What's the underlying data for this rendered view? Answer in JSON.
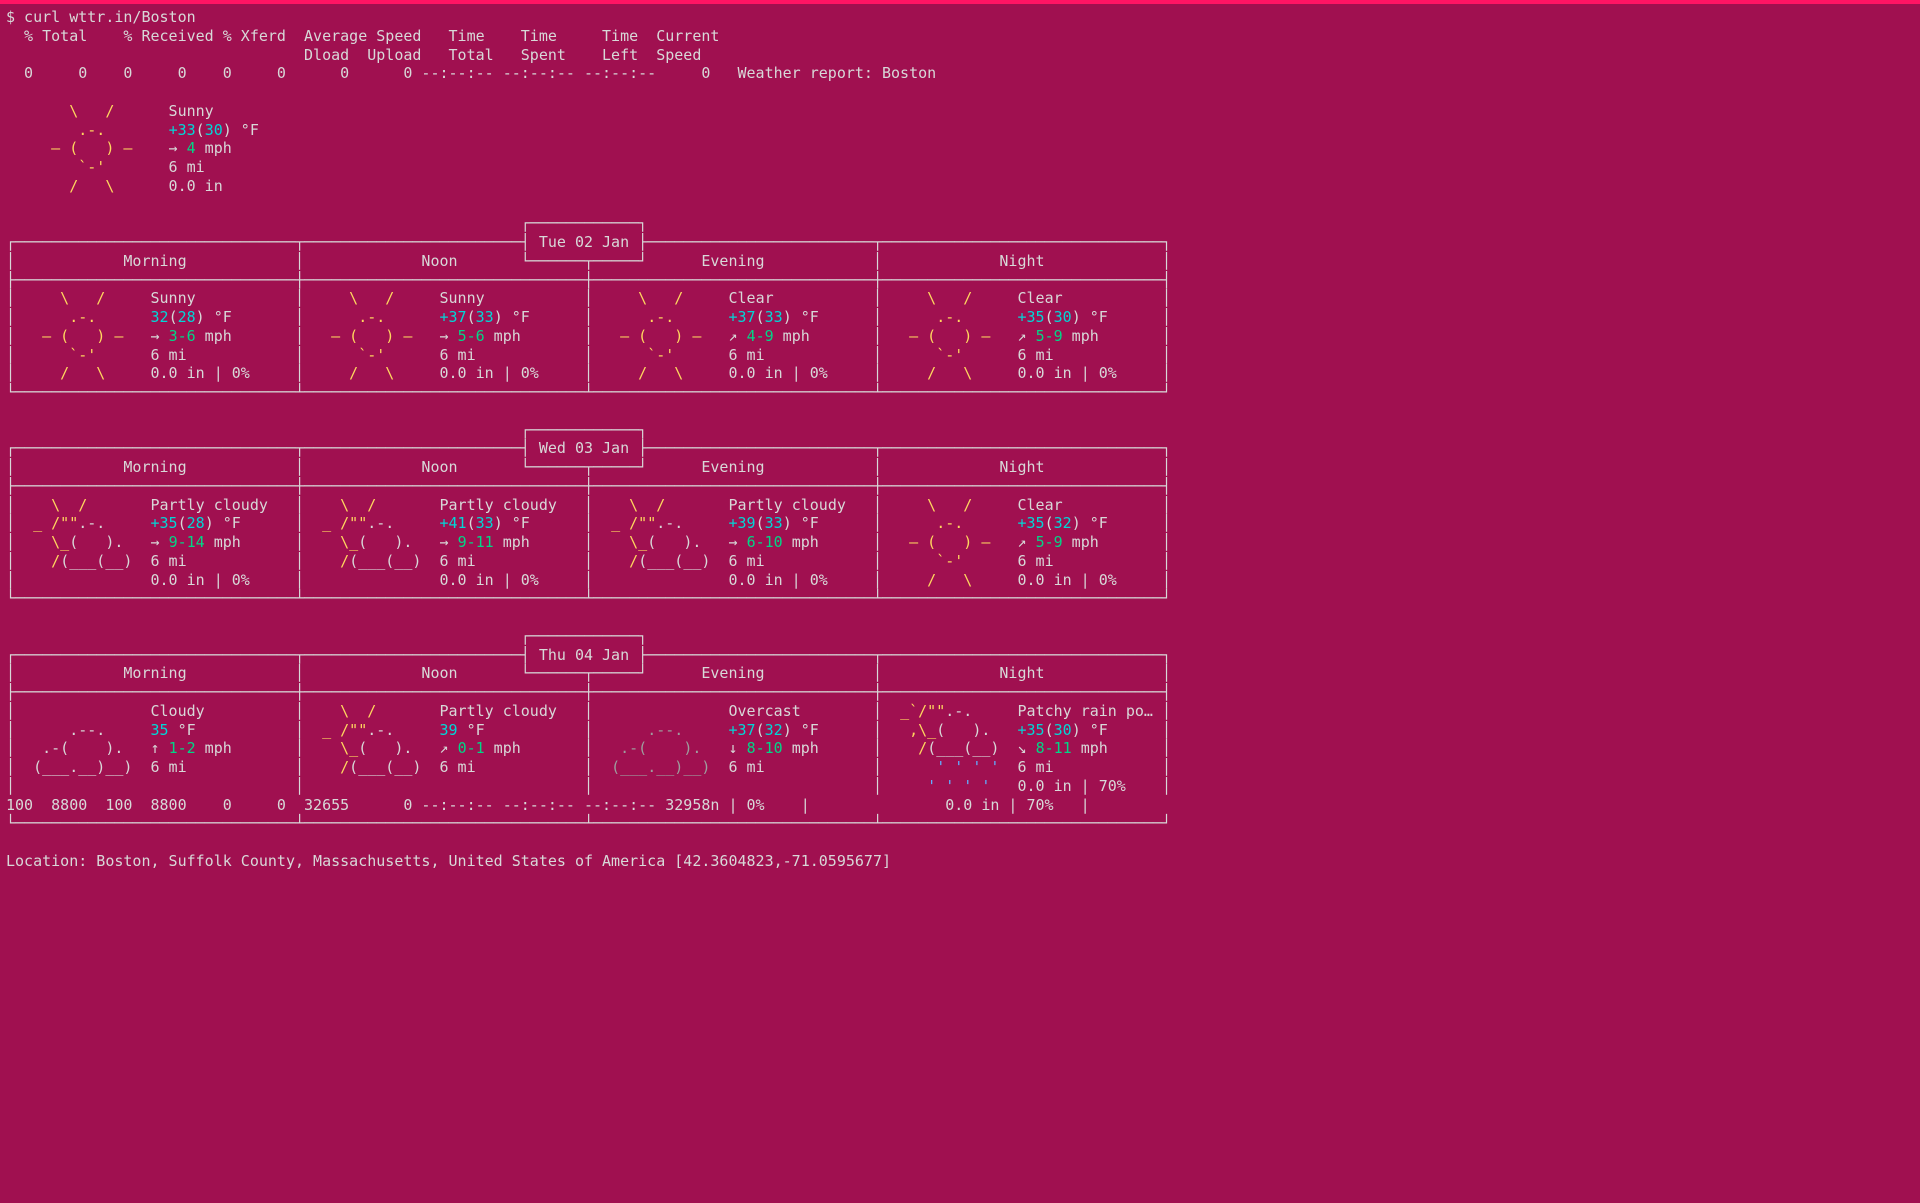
{
  "colors": {
    "bg": "#a01050",
    "fg": "#d8d8d8",
    "yellow": "#ffd75f",
    "green": "#00d787",
    "cyan": "#00d7d7",
    "grey": "#9e9e9e",
    "blue": "#5fafff",
    "top_border": "#ff1464"
  },
  "command_line": "$ curl wttr.in/Boston",
  "curl_header": {
    "line1": "  % Total    % Received % Xferd  Average Speed   Time    Time     Time  Current",
    "line2": "                                 Dload  Upload   Total   Spent    Left  Speed",
    "line3_left": "  0     0    0     0    0     0      0      0 --:--:-- --:--:-- --:--:--     0",
    "line3_right": "Weather report: Boston"
  },
  "current": {
    "art": "sunny",
    "condition": "Sunny",
    "temp_prefix": "+",
    "temp": "33",
    "feels": "30",
    "temp_unit": "°F",
    "wind_arrow": "→",
    "wind": "4",
    "wind_unit": "mph",
    "visibility": "6 mi",
    "precip": "0.0 in"
  },
  "days": [
    {
      "date": "Tue 02 Jan",
      "periods": [
        {
          "name": "Morning",
          "art": "sunny",
          "condition": "Sunny",
          "temp_prefix": "",
          "temp": "32",
          "feels": "28",
          "temp_unit": "°F",
          "wind_arrow": "→",
          "wind": "3-6",
          "wind_unit": "mph",
          "visibility": "6 mi",
          "precip": "0.0 in | 0%"
        },
        {
          "name": "Noon",
          "art": "sunny",
          "condition": "Sunny",
          "temp_prefix": "+",
          "temp": "37",
          "feels": "33",
          "temp_unit": "°F",
          "wind_arrow": "→",
          "wind": "5-6",
          "wind_unit": "mph",
          "visibility": "6 mi",
          "precip": "0.0 in | 0%"
        },
        {
          "name": "Evening",
          "art": "sunny",
          "condition": "Clear",
          "temp_prefix": "+",
          "temp": "37",
          "feels": "33",
          "temp_unit": "°F",
          "wind_arrow": "↗",
          "wind": "4-9",
          "wind_unit": "mph",
          "visibility": "6 mi",
          "precip": "0.0 in | 0%"
        },
        {
          "name": "Night",
          "art": "sunny",
          "condition": "Clear",
          "temp_prefix": "+",
          "temp": "35",
          "feels": "30",
          "temp_unit": "°F",
          "wind_arrow": "↗",
          "wind": "5-9",
          "wind_unit": "mph",
          "visibility": "6 mi",
          "precip": "0.0 in | 0%"
        }
      ]
    },
    {
      "date": "Wed 03 Jan",
      "periods": [
        {
          "name": "Morning",
          "art": "partly",
          "condition": "Partly cloudy",
          "temp_prefix": "+",
          "temp": "35",
          "feels": "28",
          "temp_unit": "°F",
          "wind_arrow": "→",
          "wind": "9-14",
          "wind_unit": "mph",
          "visibility": "6 mi",
          "precip": "0.0 in | 0%"
        },
        {
          "name": "Noon",
          "art": "partly",
          "condition": "Partly cloudy",
          "temp_prefix": "+",
          "temp": "41",
          "feels": "33",
          "temp_unit": "°F",
          "wind_arrow": "→",
          "wind": "9-11",
          "wind_unit": "mph",
          "visibility": "6 mi",
          "precip": "0.0 in | 0%"
        },
        {
          "name": "Evening",
          "art": "partly",
          "condition": "Partly cloudy",
          "temp_prefix": "+",
          "temp": "39",
          "feels": "33",
          "temp_unit": "°F",
          "wind_arrow": "→",
          "wind": "6-10",
          "wind_unit": "mph",
          "visibility": "6 mi",
          "precip": "0.0 in | 0%"
        },
        {
          "name": "Night",
          "art": "sunny",
          "condition": "Clear",
          "temp_prefix": "+",
          "temp": "35",
          "feels": "32",
          "temp_unit": "°F",
          "wind_arrow": "↗",
          "wind": "5-9",
          "wind_unit": "mph",
          "visibility": "6 mi",
          "precip": "0.0 in | 0%"
        }
      ]
    },
    {
      "date": "Thu 04 Jan",
      "periods": [
        {
          "name": "Morning",
          "art": "cloudy",
          "condition": "Cloudy",
          "temp_prefix": "",
          "temp": "35",
          "feels": "",
          "temp_unit": "°F",
          "wind_arrow": "↑",
          "wind": "1-2",
          "wind_unit": "mph",
          "visibility": "6 mi",
          "precip": ""
        },
        {
          "name": "Noon",
          "art": "partly",
          "condition": "Partly cloudy",
          "temp_prefix": "",
          "temp": "39",
          "feels": "",
          "temp_unit": "°F",
          "wind_arrow": "↗",
          "wind": "0-1",
          "wind_unit": "mph",
          "visibility": "6 mi",
          "precip": ""
        },
        {
          "name": "Evening",
          "art": "overcast",
          "condition": "Overcast",
          "temp_prefix": "+",
          "temp": "37",
          "feels": "32",
          "temp_unit": "°F",
          "wind_arrow": "↓",
          "wind": "8-10",
          "wind_unit": "mph",
          "visibility": "6 mi",
          "precip": ""
        },
        {
          "name": "Night",
          "art": "rain",
          "condition": "Patchy rain po…",
          "temp_prefix": "+",
          "temp": "35",
          "feels": "30",
          "temp_unit": "°F",
          "wind_arrow": "↘",
          "wind": "8-11",
          "wind_unit": "mph",
          "visibility": "6 mi",
          "precip": "0.0 in | 70%"
        }
      ]
    }
  ],
  "bottom_progress": "100  8800  100  8800    0     0  32655      0 --:--:-- --:--:-- --:--:-- 32958n | 0%    |               0.0 in | 70%   |",
  "location_line": "Location: Boston, Suffolk County, Massachusetts, United States of America [42.3604823,-71.0595677]"
}
